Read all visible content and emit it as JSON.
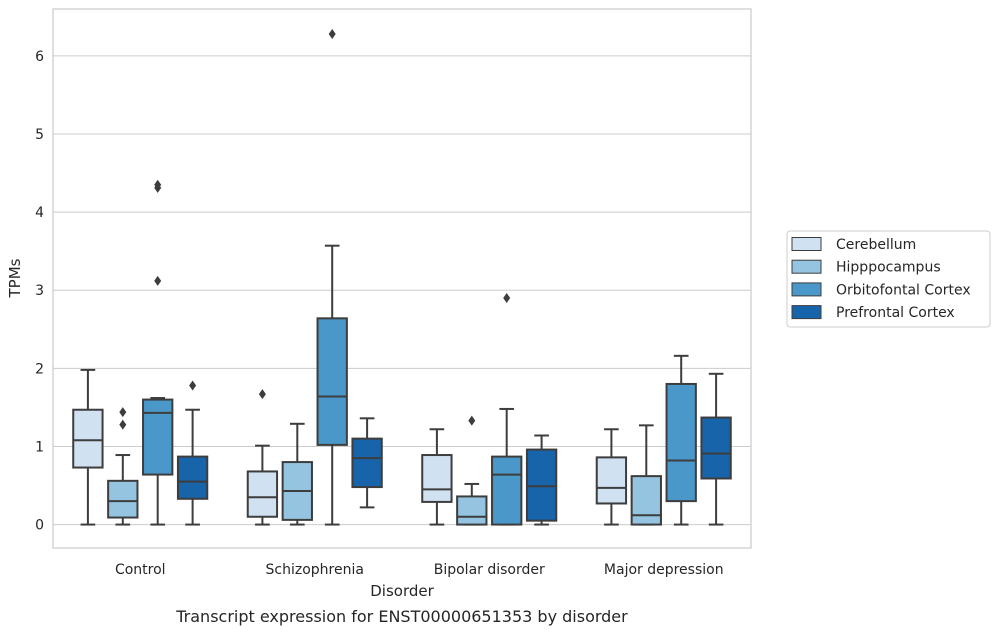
{
  "chart_data": {
    "type": "boxplot",
    "title": "",
    "caption": "Transcript expression for ENST00000651353 by disorder",
    "xlabel": "Disorder",
    "ylabel": "TPMs",
    "ylim": [
      -0.3,
      6.6
    ],
    "yticks": [
      0,
      1,
      2,
      3,
      4,
      5,
      6
    ],
    "grid": "horizontal",
    "legend_position": "right",
    "categories": [
      "Control",
      "Schizophrenia",
      "Bipolar disorder",
      "Major depression"
    ],
    "series": [
      {
        "name": "Cerebellum",
        "color": "#d0e1f2",
        "boxes": [
          {
            "whislo": 0.0,
            "q1": 0.73,
            "med": 1.08,
            "q3": 1.47,
            "whishi": 1.98,
            "fliers": []
          },
          {
            "whislo": 0.0,
            "q1": 0.1,
            "med": 0.35,
            "q3": 0.68,
            "whishi": 1.01,
            "fliers": [
              1.67
            ]
          },
          {
            "whislo": 0.0,
            "q1": 0.29,
            "med": 0.45,
            "q3": 0.89,
            "whishi": 1.22,
            "fliers": []
          },
          {
            "whislo": 0.0,
            "q1": 0.27,
            "med": 0.47,
            "q3": 0.86,
            "whishi": 1.22,
            "fliers": []
          }
        ]
      },
      {
        "name": "Hipppocampus",
        "color": "#94c4df",
        "boxes": [
          {
            "whislo": 0.0,
            "q1": 0.09,
            "med": 0.3,
            "q3": 0.56,
            "whishi": 0.89,
            "fliers": [
              1.28,
              1.44
            ]
          },
          {
            "whislo": 0.0,
            "q1": 0.06,
            "med": 0.43,
            "q3": 0.8,
            "whishi": 1.29,
            "fliers": []
          },
          {
            "whislo": 0.0,
            "q1": 0.0,
            "med": 0.1,
            "q3": 0.36,
            "whishi": 0.52,
            "fliers": [
              1.33
            ]
          },
          {
            "whislo": 0.0,
            "q1": 0.0,
            "med": 0.12,
            "q3": 0.62,
            "whishi": 1.27,
            "fliers": []
          }
        ]
      },
      {
        "name": "Orbitofontal Cortex",
        "color": "#4a98c9",
        "boxes": [
          {
            "whislo": 0.0,
            "q1": 0.64,
            "med": 1.43,
            "q3": 1.6,
            "whishi": 1.62,
            "fliers": [
              3.12,
              4.31,
              4.35
            ]
          },
          {
            "whislo": 0.0,
            "q1": 1.02,
            "med": 1.64,
            "q3": 2.64,
            "whishi": 3.57,
            "fliers": [
              6.28
            ]
          },
          {
            "whislo": 0.0,
            "q1": 0.0,
            "med": 0.64,
            "q3": 0.87,
            "whishi": 1.48,
            "fliers": [
              2.9
            ]
          },
          {
            "whislo": 0.0,
            "q1": 0.3,
            "med": 0.82,
            "q3": 1.8,
            "whishi": 2.16,
            "fliers": []
          }
        ]
      },
      {
        "name": "Prefrontal Cortex",
        "color": "#1764ab",
        "boxes": [
          {
            "whislo": 0.0,
            "q1": 0.33,
            "med": 0.55,
            "q3": 0.87,
            "whishi": 1.47,
            "fliers": [
              1.78
            ]
          },
          {
            "whislo": 0.22,
            "q1": 0.48,
            "med": 0.85,
            "q3": 1.1,
            "whishi": 1.36,
            "fliers": []
          },
          {
            "whislo": 0.0,
            "q1": 0.05,
            "med": 0.49,
            "q3": 0.96,
            "whishi": 1.14,
            "fliers": []
          },
          {
            "whislo": 0.0,
            "q1": 0.59,
            "med": 0.91,
            "q3": 1.37,
            "whishi": 1.93,
            "fliers": []
          }
        ]
      }
    ]
  }
}
